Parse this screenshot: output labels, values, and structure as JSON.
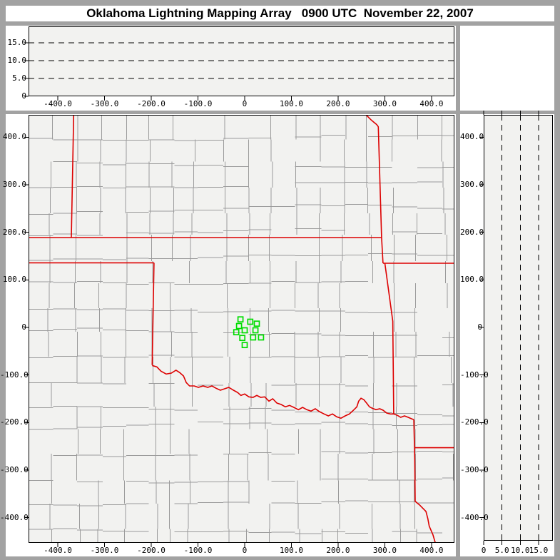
{
  "title": "Oklahoma Lightning Mapping Array   0900 UTC  November 22, 2007",
  "colors": {
    "background": "#a2a2a2",
    "panel": "#ffffff",
    "plot_background": "#f2f2f0",
    "axis": "#000000",
    "dashed_grid": "#000000",
    "county_line": "#9b9b9b",
    "state_border": "#dd0000",
    "station_marker": "#00dd00",
    "label_text": "#000000"
  },
  "altitude_panel_top": {
    "description": "altitude (km) vs east-west distance (km)",
    "alt_lim": [
      0,
      19.6
    ],
    "y_ticks": [
      {
        "v": 15,
        "label": "15.0"
      },
      {
        "v": 10,
        "label": "10.0"
      },
      {
        "v": 5,
        "label": "5.0"
      },
      {
        "v": 0,
        "label": "0"
      }
    ],
    "grid_values": [
      5,
      10,
      15
    ]
  },
  "altitude_panel_right": {
    "description": "north-south distance (km) vs altitude (km)",
    "alt_lim": [
      0,
      18.9
    ],
    "x_ticks": [
      {
        "v": 0,
        "label": "0"
      },
      {
        "v": 5,
        "label": "5.0"
      },
      {
        "v": 10,
        "label": "10.0"
      },
      {
        "v": 15,
        "label": "15.0"
      }
    ],
    "grid_values": [
      5,
      10,
      15
    ]
  },
  "map_panel": {
    "description": "plan view map, distances in km from network center",
    "xlim": [
      -462.6,
      448.9
    ],
    "ylim": [
      -453.1,
      447.1
    ],
    "x_ticks": [
      {
        "v": -400,
        "label": "-400.0"
      },
      {
        "v": -300,
        "label": "-300.0"
      },
      {
        "v": -200,
        "label": "-200.0"
      },
      {
        "v": -100,
        "label": "-100.0"
      },
      {
        "v": 0,
        "label": "0"
      },
      {
        "v": 100,
        "label": "100.0"
      },
      {
        "v": 200,
        "label": "200.0"
      },
      {
        "v": 300,
        "label": "300.0"
      },
      {
        "v": 400,
        "label": "400.0"
      }
    ],
    "y_ticks": [
      {
        "v": 400,
        "label": "400.0"
      },
      {
        "v": 300,
        "label": "300.0"
      },
      {
        "v": 200,
        "label": "200.0"
      },
      {
        "v": 100,
        "label": "100.0"
      },
      {
        "v": 0,
        "label": "0"
      },
      {
        "v": -100,
        "label": "-100.0"
      },
      {
        "v": -200,
        "label": "-200.0"
      },
      {
        "v": -300,
        "label": "-300.0"
      },
      {
        "v": -400,
        "label": "-400.0"
      }
    ],
    "stations_km": [
      [
        -9,
        17
      ],
      [
        12,
        12
      ],
      [
        26,
        8
      ],
      [
        -12,
        3
      ],
      [
        0,
        -6
      ],
      [
        23,
        -6
      ],
      [
        -18,
        -10
      ],
      [
        -5,
        -22
      ],
      [
        18,
        -21
      ],
      [
        35,
        -21
      ],
      [
        0,
        -37
      ]
    ],
    "state_borders": [
      {
        "name": "colorado-kansas-102w",
        "points": [
          [
            -366,
            449
          ],
          [
            -371,
            189
          ]
        ]
      },
      {
        "name": "kansas-missouri",
        "points": [
          [
            258,
            449
          ],
          [
            263,
            444
          ],
          [
            270,
            437
          ],
          [
            276,
            432
          ],
          [
            281,
            428
          ],
          [
            284,
            425
          ],
          [
            286,
            422
          ],
          [
            293,
            189
          ]
        ]
      },
      {
        "name": "kansas-oklahoma-37n",
        "points": [
          [
            -463,
            189
          ],
          [
            293,
            189
          ]
        ]
      },
      {
        "name": "oklahoma-missouri-9462w",
        "points": [
          [
            293,
            189
          ],
          [
            296,
            135
          ]
        ]
      },
      {
        "name": "missouri-arkansas-365n",
        "points": [
          [
            296,
            135
          ],
          [
            449,
            135
          ]
        ]
      },
      {
        "name": "oklahoma-arkansas",
        "points": [
          [
            300,
            135
          ],
          [
            317,
            13
          ],
          [
            319,
            -182
          ]
        ]
      },
      {
        "name": "panhandle-south-365n",
        "points": [
          [
            -463,
            136
          ],
          [
            -194,
            136
          ]
        ]
      },
      {
        "name": "texas-oklahoma-100w",
        "points": [
          [
            -194,
            136
          ],
          [
            -198,
            -79
          ]
        ]
      },
      {
        "name": "red-river",
        "points": [
          [
            -198,
            -80
          ],
          [
            -188,
            -83
          ],
          [
            -179,
            -92
          ],
          [
            -168,
            -98
          ],
          [
            -157,
            -96
          ],
          [
            -147,
            -90
          ],
          [
            -139,
            -95
          ],
          [
            -131,
            -102
          ],
          [
            -125,
            -116
          ],
          [
            -118,
            -123
          ],
          [
            -108,
            -123
          ],
          [
            -99,
            -126
          ],
          [
            -89,
            -123
          ],
          [
            -79,
            -126
          ],
          [
            -70,
            -123
          ],
          [
            -61,
            -128
          ],
          [
            -52,
            -132
          ],
          [
            -43,
            -129
          ],
          [
            -34,
            -126
          ],
          [
            -24,
            -132
          ],
          [
            -15,
            -137
          ],
          [
            -8,
            -143
          ],
          [
            0,
            -140
          ],
          [
            9,
            -146
          ],
          [
            18,
            -147
          ],
          [
            26,
            -143
          ],
          [
            34,
            -147
          ],
          [
            43,
            -146
          ],
          [
            52,
            -155
          ],
          [
            60,
            -150
          ],
          [
            69,
            -159
          ],
          [
            78,
            -162
          ],
          [
            87,
            -167
          ],
          [
            96,
            -164
          ],
          [
            105,
            -168
          ],
          [
            115,
            -173
          ],
          [
            124,
            -168
          ],
          [
            133,
            -173
          ],
          [
            142,
            -176
          ],
          [
            151,
            -171
          ],
          [
            160,
            -177
          ],
          [
            170,
            -182
          ],
          [
            179,
            -186
          ],
          [
            188,
            -182
          ],
          [
            197,
            -188
          ],
          [
            206,
            -191
          ],
          [
            215,
            -186
          ],
          [
            224,
            -182
          ],
          [
            234,
            -173
          ],
          [
            240,
            -167
          ],
          [
            244,
            -155
          ],
          [
            249,
            -149
          ],
          [
            255,
            -152
          ],
          [
            261,
            -159
          ],
          [
            267,
            -167
          ],
          [
            273,
            -170
          ],
          [
            281,
            -173
          ],
          [
            289,
            -171
          ],
          [
            296,
            -174
          ],
          [
            304,
            -180
          ],
          [
            312,
            -182
          ],
          [
            319,
            -182
          ],
          [
            327,
            -185
          ],
          [
            334,
            -189
          ],
          [
            342,
            -186
          ],
          [
            350,
            -189
          ],
          [
            357,
            -192
          ],
          [
            362,
            -194
          ]
        ]
      },
      {
        "name": "texas-arkansas-louisiana",
        "points": [
          [
            362,
            -194
          ],
          [
            364,
            -280
          ],
          [
            365,
            -366
          ],
          [
            374,
            -373
          ],
          [
            388,
            -387
          ],
          [
            392,
            -402
          ],
          [
            395,
            -418
          ],
          [
            403,
            -436
          ],
          [
            408,
            -453
          ]
        ]
      },
      {
        "name": "arkansas-louisiana-33n",
        "points": [
          [
            365,
            -253
          ],
          [
            449,
            -253
          ]
        ]
      }
    ],
    "county_grid": {
      "spacing_km": 52,
      "jitter_km": 8,
      "skip_probability": 0.16,
      "seed": 42
    }
  }
}
